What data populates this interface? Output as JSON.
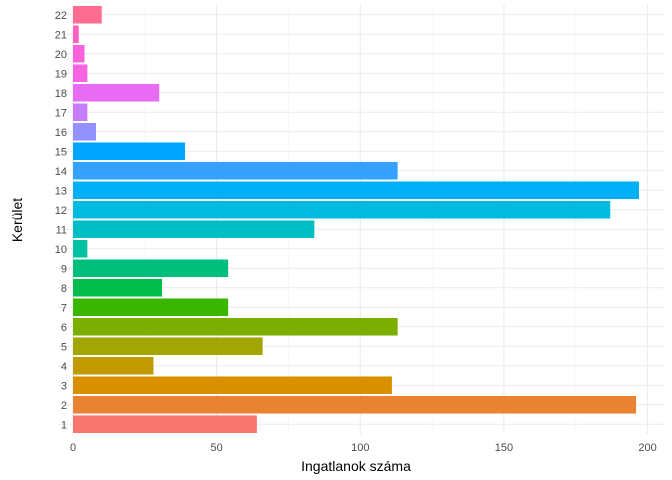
{
  "chart_data": {
    "type": "bar",
    "orientation": "horizontal",
    "xlabel": "Ingatlanok száma",
    "ylabel": "Kerület",
    "xlim": [
      0,
      200
    ],
    "x_ticks": [
      0,
      50,
      100,
      150,
      200
    ],
    "grid": true,
    "legend": "none",
    "categories": [
      "1",
      "2",
      "3",
      "4",
      "5",
      "6",
      "7",
      "8",
      "9",
      "10",
      "11",
      "12",
      "13",
      "14",
      "15",
      "16",
      "17",
      "18",
      "19",
      "20",
      "21",
      "22"
    ],
    "values": [
      64,
      196,
      111,
      28,
      66,
      113,
      54,
      31,
      54,
      5,
      84,
      187,
      197,
      113,
      39,
      8,
      5,
      30,
      5,
      4,
      2,
      10
    ],
    "colors": [
      "#F8766D",
      "#EA8331",
      "#D89000",
      "#C09B00",
      "#A3A500",
      "#7CAE00",
      "#39B600",
      "#00BB4E",
      "#00BF7D",
      "#00C1A3",
      "#00BFC4",
      "#00BAE0",
      "#00B0F6",
      "#35A2FF",
      "#00A5FF",
      "#9590FF",
      "#C77CFF",
      "#E76BF3",
      "#F564E3",
      "#FA62DB",
      "#FF61C3",
      "#FF6C91"
    ]
  }
}
